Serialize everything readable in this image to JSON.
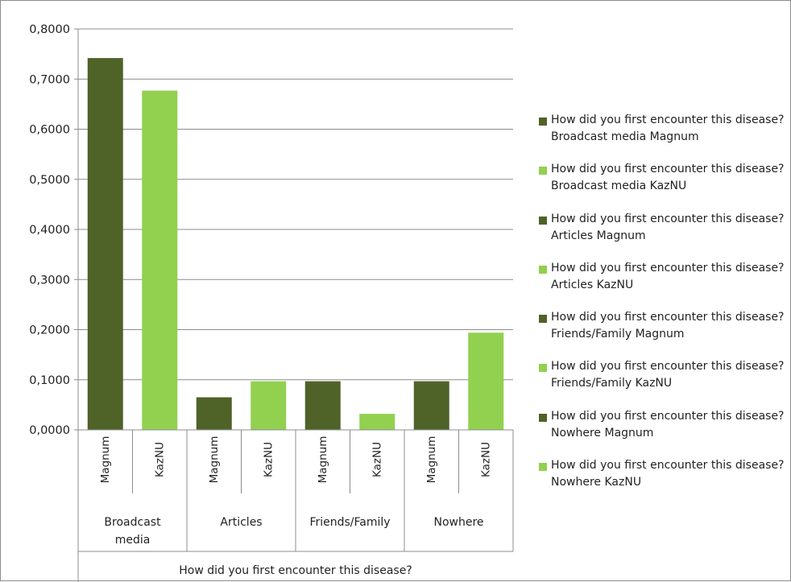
{
  "chart_data": {
    "type": "bar",
    "xlabel": "How did you first encounter this disease?",
    "ylabel": "",
    "ylim": [
      0,
      0.8
    ],
    "yticks": [
      "0,0000",
      "0,1000",
      "0,2000",
      "0,3000",
      "0,4000",
      "0,5000",
      "0,6000",
      "0,7000",
      "0,8000"
    ],
    "grid": true,
    "legend_position": "right",
    "groups": [
      {
        "label": "Broadcast media",
        "categories": [
          "Magnum",
          "KazNU"
        ],
        "values": [
          0.742,
          0.677
        ]
      },
      {
        "label": "Articles",
        "categories": [
          "Magnum",
          "KazNU"
        ],
        "values": [
          0.065,
          0.097
        ]
      },
      {
        "label": "Friends/Family",
        "categories": [
          "Magnum",
          "KazNU"
        ],
        "values": [
          0.097,
          0.032
        ]
      },
      {
        "label": "Nowhere",
        "categories": [
          "Magnum",
          "KazNU"
        ],
        "values": [
          0.097,
          0.194
        ]
      }
    ],
    "series": [
      {
        "name": "How did you first encounter this disease? Broadcast media Magnum",
        "color": "#4f6228",
        "values": [
          0.742
        ]
      },
      {
        "name": "How did you first encounter this disease? Broadcast media KazNU",
        "color": "#92d050",
        "values": [
          0.677
        ]
      },
      {
        "name": "How did you first encounter this disease? Articles Magnum",
        "color": "#4f6228",
        "values": [
          0.065
        ]
      },
      {
        "name": "How did you first encounter this disease? Articles KazNU",
        "color": "#92d050",
        "values": [
          0.097
        ]
      },
      {
        "name": "How did you first encounter this disease? Friends/Family Magnum",
        "color": "#4f6228",
        "values": [
          0.097
        ]
      },
      {
        "name": "How did you first encounter this disease? Friends/Family KazNU",
        "color": "#92d050",
        "values": [
          0.032
        ]
      },
      {
        "name": "How did you first encounter this disease? Nowhere Magnum",
        "color": "#4f6228",
        "values": [
          0.097
        ]
      },
      {
        "name": "How did you first encounter this disease? Nowhere KazNU",
        "color": "#92d050",
        "values": [
          0.194
        ]
      }
    ]
  }
}
